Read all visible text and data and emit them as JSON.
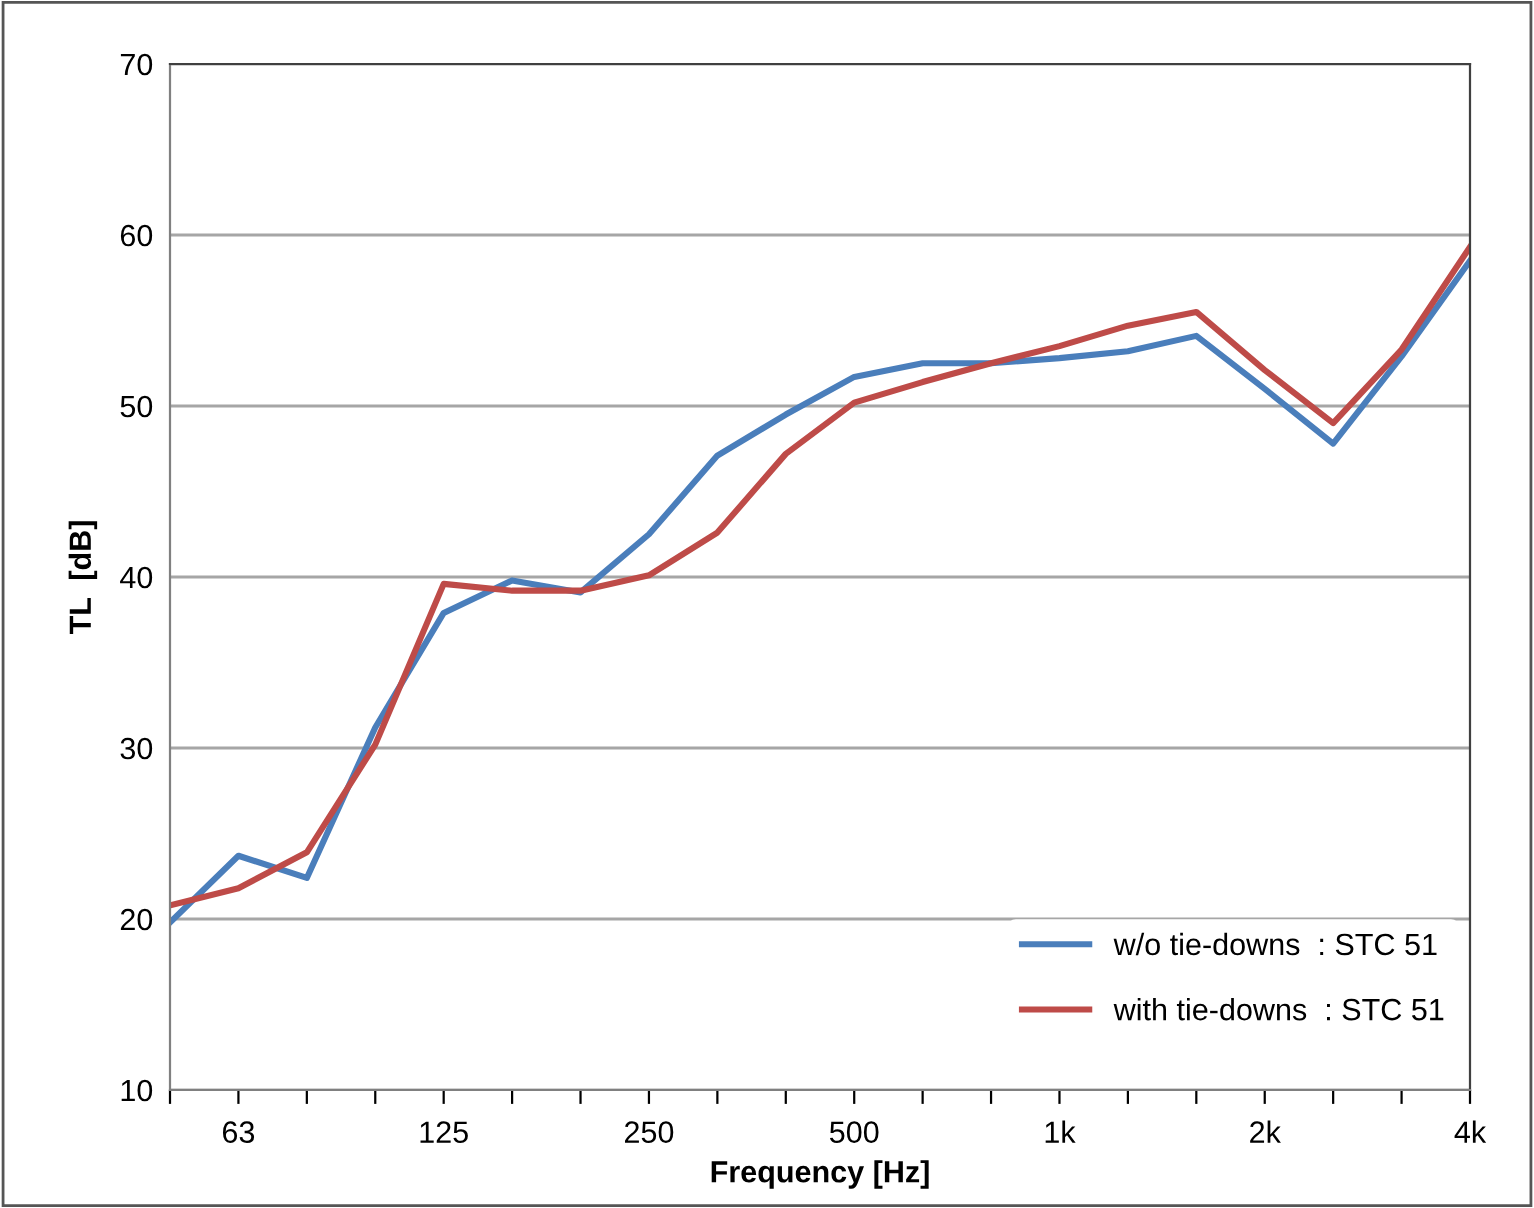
{
  "chart_data": {
    "type": "line",
    "xlabel": "Frequency [Hz]",
    "ylabel": "TL  [dB]",
    "categories": [
      null,
      "63",
      null,
      null,
      "125",
      null,
      null,
      "250",
      null,
      null,
      "500",
      null,
      null,
      "1k",
      null,
      null,
      "2k",
      null,
      null,
      "4k"
    ],
    "series": [
      {
        "name": "w/o tie-downs  : STC 51",
        "color": "#4a7ebb",
        "values": [
          19.8,
          23.7,
          22.4,
          31.2,
          37.9,
          39.8,
          39.1,
          42.5,
          47.1,
          49.5,
          51.7,
          52.5,
          52.5,
          52.8,
          53.2,
          54.1,
          51.0,
          47.8,
          52.9,
          58.5
        ]
      },
      {
        "name": "with tie-downs  : STC 51",
        "color": "#be4b48",
        "values": [
          20.8,
          21.8,
          23.9,
          30.2,
          39.6,
          39.2,
          39.2,
          40.1,
          42.6,
          47.2,
          50.2,
          51.4,
          52.5,
          53.5,
          54.7,
          55.5,
          52.1,
          49.0,
          53.3,
          59.3
        ]
      }
    ],
    "ylim": [
      10,
      70
    ],
    "yticks": [
      10,
      20,
      30,
      40,
      50,
      60,
      70
    ],
    "grid": "y",
    "legend": "bottom right",
    "marker": "none",
    "line_style": "solid"
  }
}
